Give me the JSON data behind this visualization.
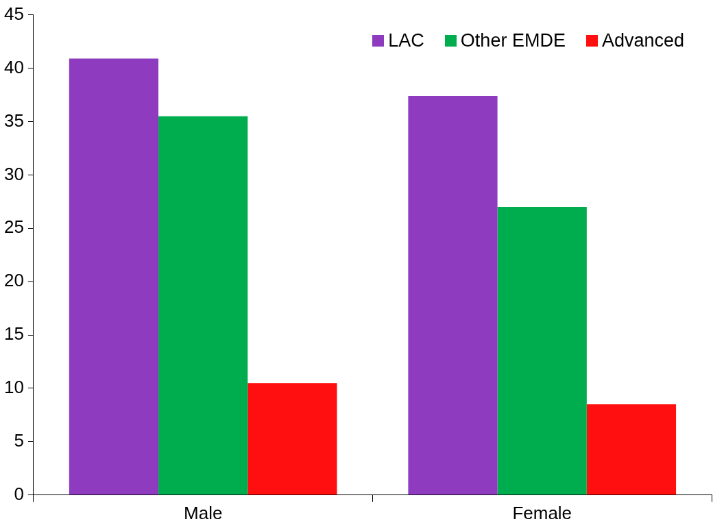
{
  "chart_data": {
    "type": "bar",
    "categories": [
      "Male",
      "Female"
    ],
    "series": [
      {
        "name": "LAC",
        "color": "#8e3bbf",
        "values": [
          40.9,
          37.4
        ]
      },
      {
        "name": "Other EMDE",
        "color": "#00ad4e",
        "values": [
          35.5,
          27.0
        ]
      },
      {
        "name": "Advanced",
        "color": "#ff0f0f",
        "values": [
          10.5,
          8.5
        ]
      }
    ],
    "ylim": [
      0,
      45
    ],
    "yticks": [
      0,
      5,
      10,
      15,
      20,
      25,
      30,
      35,
      40,
      45
    ],
    "grid": false,
    "legend": "top right"
  }
}
